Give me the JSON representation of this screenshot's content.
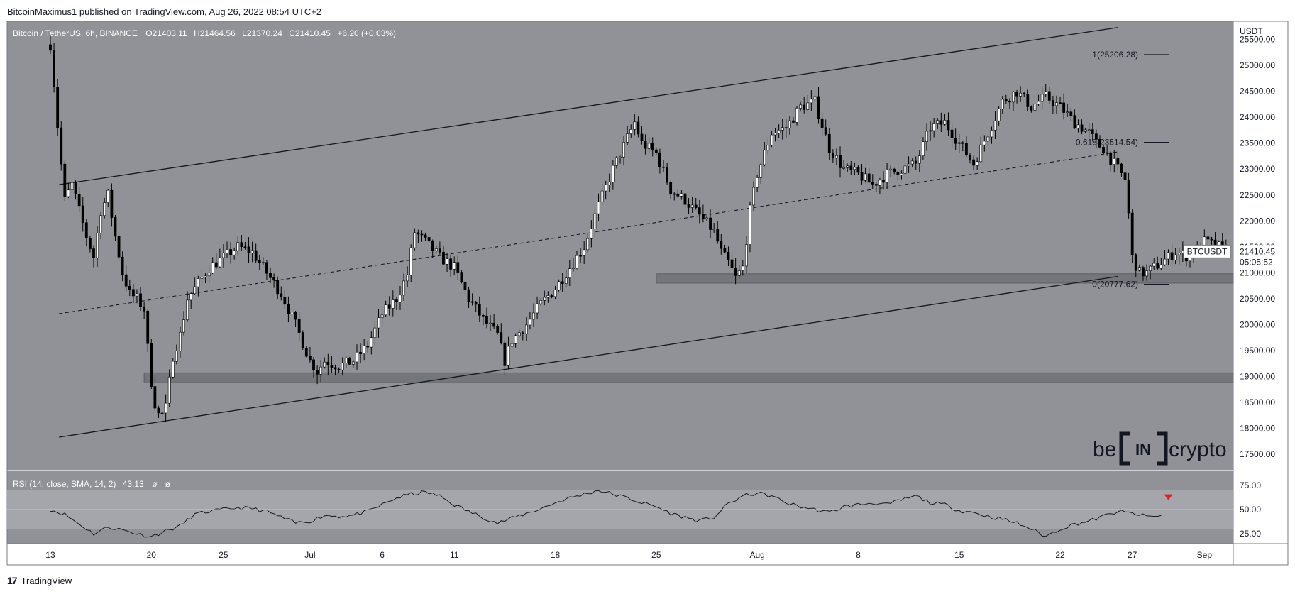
{
  "header": {
    "publish_line": "BitcoinMaximus1 published on TradingView.com, Aug 26, 2022 08:54 UTC+2"
  },
  "footer": {
    "brand": "TradingView",
    "logo_glyph": "17"
  },
  "legend": {
    "symbol": "Bitcoin / TetherUS, 6h, BINANCE",
    "o_key": "O",
    "o": "21403.11",
    "h_key": "H",
    "h": "21464.56",
    "l_key": "L",
    "l": "21370.24",
    "c_key": "C",
    "c": "21410.45",
    "change": "+6.20 (+0.03%)"
  },
  "price_axis": {
    "unit": "USDT",
    "ticks": [
      "25500.00",
      "25000.00",
      "24500.00",
      "24000.00",
      "23500.00",
      "23000.00",
      "22500.00",
      "22000.00",
      "21500.00",
      "21000.00",
      "20500.00",
      "20000.00",
      "19500.00",
      "19000.00",
      "18500.00",
      "18000.00",
      "17500.00"
    ],
    "tick_values": [
      25500,
      25000,
      24500,
      24000,
      23500,
      23000,
      22500,
      22000,
      21500,
      21000,
      20500,
      20000,
      19500,
      19000,
      18500,
      18000,
      17500
    ]
  },
  "last_price": {
    "symbol": "BTCUSDT",
    "price": "21410.45",
    "value": 21410.45,
    "countdown": "05:05:52"
  },
  "fib_levels": [
    {
      "label": "1(25206.28)",
      "value": 25206.28
    },
    {
      "label": "0.618(23514.54)",
      "value": 23514.54
    },
    {
      "label": "0(20777.62)",
      "value": 20777.62
    }
  ],
  "time_axis": {
    "ticks": [
      "13",
      "20",
      "25",
      "Jul",
      "6",
      "11",
      "18",
      "25",
      "Aug",
      "8",
      "15",
      "22",
      "27",
      "Sep"
    ],
    "tick_days": [
      0,
      7,
      12,
      18,
      23,
      28,
      35,
      42,
      49,
      56,
      63,
      70,
      75,
      80
    ]
  },
  "rsi": {
    "legend": "RSI (14, close, SMA, 14, 2)",
    "value": "43.13",
    "placeholder_a": "ø",
    "placeholder_b": "ø",
    "ticks": [
      "75.00",
      "50.00",
      "25.00"
    ],
    "tick_values": [
      75,
      50,
      25
    ]
  },
  "watermark": {
    "left": "be",
    "mid": "IN",
    "right": "crypto"
  },
  "colors": {
    "plot_bg": "#909297",
    "rsi_band": "#a4a6ab",
    "line": "#131722",
    "marker": "#e0201f"
  },
  "chart_data": {
    "type": "candlestick",
    "x_axis": "days since Jun 13, 2022 (6h candles)",
    "x_range": [
      -3,
      82
    ],
    "y_range": [
      17200,
      25850
    ],
    "support_zones": [
      {
        "from": 18880,
        "to": 19070,
        "x_from": 6.5,
        "x_to": 82
      },
      {
        "from": 20800,
        "to": 20980,
        "x_from": 42,
        "x_to": 82
      }
    ],
    "channel": {
      "upper": [
        [
          0.6,
          22700
        ],
        [
          74,
          25730
        ]
      ],
      "lower": [
        [
          0.6,
          17830
        ],
        [
          74,
          20930
        ]
      ],
      "mid": [
        [
          0.6,
          20210
        ],
        [
          74,
          23330
        ]
      ]
    },
    "close_anchors": [
      [
        0,
        25400
      ],
      [
        0.3,
        24500
      ],
      [
        0.6,
        23500
      ],
      [
        1,
        22400
      ],
      [
        1.5,
        22700
      ],
      [
        2,
        22200
      ],
      [
        2.5,
        21700
      ],
      [
        3,
        21300
      ],
      [
        3.5,
        22200
      ],
      [
        4,
        22500
      ],
      [
        4.5,
        21700
      ],
      [
        5,
        21000
      ],
      [
        5.5,
        20600
      ],
      [
        6,
        20500
      ],
      [
        6.5,
        20300
      ],
      [
        6.8,
        19400
      ],
      [
        7,
        18900
      ],
      [
        7.3,
        18400
      ],
      [
        7.6,
        18200
      ],
      [
        8,
        18400
      ],
      [
        8.5,
        19400
      ],
      [
        9,
        19800
      ],
      [
        9.5,
        20500
      ],
      [
        10,
        20700
      ],
      [
        11,
        21100
      ],
      [
        12,
        21300
      ],
      [
        13,
        21500
      ],
      [
        14,
        21400
      ],
      [
        15,
        21000
      ],
      [
        16,
        20600
      ],
      [
        17,
        20000
      ],
      [
        18,
        19300
      ],
      [
        18.5,
        19100
      ],
      [
        19,
        19300
      ],
      [
        20,
        19200
      ],
      [
        21,
        19300
      ],
      [
        22,
        19600
      ],
      [
        23,
        20200
      ],
      [
        24,
        20500
      ],
      [
        24.8,
        21000
      ],
      [
        25.2,
        21800
      ],
      [
        26,
        21600
      ],
      [
        27,
        21300
      ],
      [
        28,
        21100
      ],
      [
        29,
        20500
      ],
      [
        30,
        20100
      ],
      [
        31,
        19800
      ],
      [
        31.5,
        19300
      ],
      [
        32,
        19700
      ],
      [
        33,
        20000
      ],
      [
        34,
        20400
      ],
      [
        35,
        20700
      ],
      [
        36,
        21100
      ],
      [
        37,
        21500
      ],
      [
        38,
        22300
      ],
      [
        39,
        23000
      ],
      [
        40,
        23600
      ],
      [
        40.5,
        23900
      ],
      [
        41,
        23500
      ],
      [
        42,
        23300
      ],
      [
        43,
        22600
      ],
      [
        44,
        22400
      ],
      [
        45,
        22100
      ],
      [
        46,
        21800
      ],
      [
        46.5,
        21400
      ],
      [
        47,
        21200
      ],
      [
        47.5,
        20900
      ],
      [
        48,
        21100
      ],
      [
        48.5,
        22200
      ],
      [
        49,
        22900
      ],
      [
        50,
        23700
      ],
      [
        51,
        23800
      ],
      [
        52,
        24200
      ],
      [
        53,
        24300
      ],
      [
        54,
        23400
      ],
      [
        55,
        23000
      ],
      [
        56,
        22900
      ],
      [
        57,
        22700
      ],
      [
        58,
        22900
      ],
      [
        59,
        23000
      ],
      [
        60,
        23100
      ],
      [
        61,
        23800
      ],
      [
        62,
        23900
      ],
      [
        63,
        23500
      ],
      [
        64,
        23100
      ],
      [
        65,
        23700
      ],
      [
        66,
        24300
      ],
      [
        67,
        24500
      ],
      [
        68,
        24200
      ],
      [
        69,
        24400
      ],
      [
        70,
        24200
      ],
      [
        71,
        23900
      ],
      [
        72,
        23700
      ],
      [
        72.5,
        23500
      ],
      [
        73,
        23400
      ],
      [
        73.5,
        23200
      ],
      [
        74,
        23000
      ],
      [
        74.5,
        22800
      ],
      [
        74.8,
        22000
      ],
      [
        75,
        21300
      ],
      [
        75.5,
        21000
      ],
      [
        76,
        21000
      ],
      [
        77,
        21200
      ],
      [
        78,
        21400
      ],
      [
        79,
        21300
      ],
      [
        80,
        21600
      ],
      [
        81,
        21500
      ],
      [
        81.5,
        21410
      ]
    ],
    "rsi_anchors": [
      [
        0,
        50
      ],
      [
        1,
        45
      ],
      [
        2,
        35
      ],
      [
        3,
        25
      ],
      [
        4,
        32
      ],
      [
        5,
        29
      ],
      [
        6,
        25
      ],
      [
        7,
        22
      ],
      [
        8,
        28
      ],
      [
        9,
        33
      ],
      [
        10,
        45
      ],
      [
        11,
        48
      ],
      [
        12,
        50
      ],
      [
        13,
        52
      ],
      [
        14,
        51
      ],
      [
        15,
        48
      ],
      [
        16,
        42
      ],
      [
        17,
        36
      ],
      [
        18,
        38
      ],
      [
        19,
        44
      ],
      [
        20,
        43
      ],
      [
        21,
        44
      ],
      [
        22,
        48
      ],
      [
        23,
        55
      ],
      [
        24,
        62
      ],
      [
        25,
        66
      ],
      [
        26,
        68
      ],
      [
        27,
        64
      ],
      [
        28,
        55
      ],
      [
        29,
        48
      ],
      [
        30,
        42
      ],
      [
        31,
        36
      ],
      [
        32,
        41
      ],
      [
        33,
        46
      ],
      [
        34,
        51
      ],
      [
        35,
        57
      ],
      [
        36,
        62
      ],
      [
        37,
        66
      ],
      [
        38,
        70
      ],
      [
        39,
        66
      ],
      [
        40,
        62
      ],
      [
        41,
        57
      ],
      [
        42,
        53
      ],
      [
        43,
        46
      ],
      [
        44,
        42
      ],
      [
        45,
        38
      ],
      [
        46,
        42
      ],
      [
        47,
        56
      ],
      [
        48,
        64
      ],
      [
        49,
        67
      ],
      [
        50,
        64
      ],
      [
        51,
        57
      ],
      [
        52,
        53
      ],
      [
        53,
        50
      ],
      [
        54,
        47
      ],
      [
        55,
        53
      ],
      [
        56,
        55
      ],
      [
        57,
        57
      ],
      [
        58,
        55
      ],
      [
        59,
        60
      ],
      [
        60,
        64
      ],
      [
        61,
        57
      ],
      [
        62,
        55
      ],
      [
        63,
        49
      ],
      [
        64,
        47
      ],
      [
        65,
        43
      ],
      [
        66,
        40
      ],
      [
        67,
        36
      ],
      [
        68,
        30
      ],
      [
        69,
        22
      ],
      [
        70,
        30
      ],
      [
        71,
        35
      ],
      [
        72,
        38
      ],
      [
        73,
        43
      ],
      [
        74,
        48
      ],
      [
        75,
        46
      ],
      [
        76,
        43
      ],
      [
        77,
        43
      ]
    ],
    "rsi_marker": {
      "x": 77.5,
      "value": 62
    }
  }
}
